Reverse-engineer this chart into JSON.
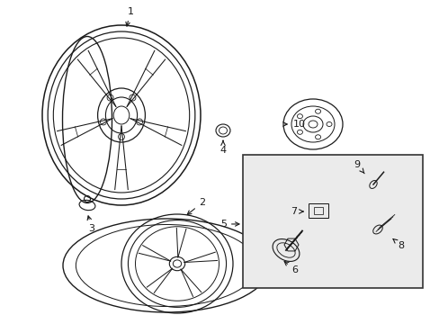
{
  "background_color": "#ffffff",
  "fig_width": 4.89,
  "fig_height": 3.6,
  "dpi": 100,
  "line_color": "#1a1a1a",
  "box_fill": "#ebebeb",
  "box_border": "#333333"
}
